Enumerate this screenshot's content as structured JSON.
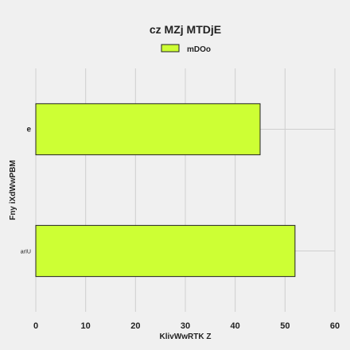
{
  "chart_data": {
    "type": "bar",
    "orientation": "horizontal",
    "title": "cz MZj MTDjE",
    "xlabel": "KlivWwRTK Z",
    "ylabel": "Fny  iXdWwPBM",
    "categories": [
      "arIU",
      "e"
    ],
    "series": [
      {
        "name": "mDOo",
        "values": [
          52,
          45
        ],
        "color": "#cdff34"
      }
    ],
    "xlim": [
      0,
      60
    ],
    "xticks": [
      0,
      10,
      20,
      30,
      40,
      50,
      60
    ],
    "grid": true,
    "legend_position": "top-center",
    "background": "#f0f0f0",
    "bar_edge_color": "#222222"
  }
}
